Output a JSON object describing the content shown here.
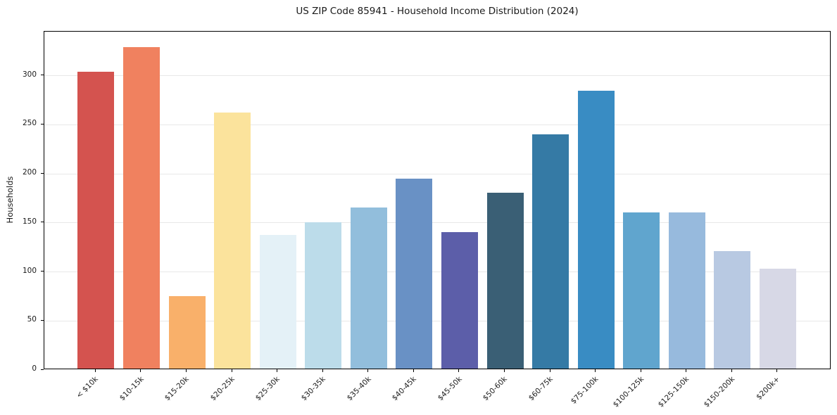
{
  "figure": {
    "title": "US ZIP Code 85941 - Household Income Distribution (2024)"
  },
  "chart_data": {
    "type": "bar",
    "title": "US ZIP Code 85941 - Household Income Distribution (2024)",
    "xlabel": "",
    "ylabel": "Households",
    "categories": [
      "< $10k",
      "$10-15k",
      "$15-20k",
      "$20-25k",
      "$25-30k",
      "$30-35k",
      "$35-40k",
      "$40-45k",
      "$45-50k",
      "$50-60k",
      "$60-75k",
      "$75-100k",
      "$100-125k",
      "$125-150k",
      "$150-200k",
      "$200k+"
    ],
    "values": [
      303,
      328,
      74,
      261,
      136,
      149,
      164,
      194,
      139,
      179,
      239,
      283,
      159,
      159,
      120,
      102
    ],
    "bar_colors": [
      "#d4534f",
      "#f0815f",
      "#f9b06a",
      "#fbe39c",
      "#e4f1f7",
      "#bcdcea",
      "#92bedc",
      "#6991c5",
      "#5c5ea9",
      "#3a5f75",
      "#357aa5",
      "#398cc3",
      "#60a5ce",
      "#97badd",
      "#b8c9e2",
      "#d7d8e6"
    ],
    "yticks": [
      0,
      50,
      100,
      150,
      200,
      250,
      300
    ],
    "ylim": [
      0,
      345
    ],
    "grid": true,
    "grid_color": "#e8e8e8",
    "legend": null,
    "background": "#ffffff",
    "spine_color": "#000000",
    "tick_label_rotation_deg": 45
  }
}
